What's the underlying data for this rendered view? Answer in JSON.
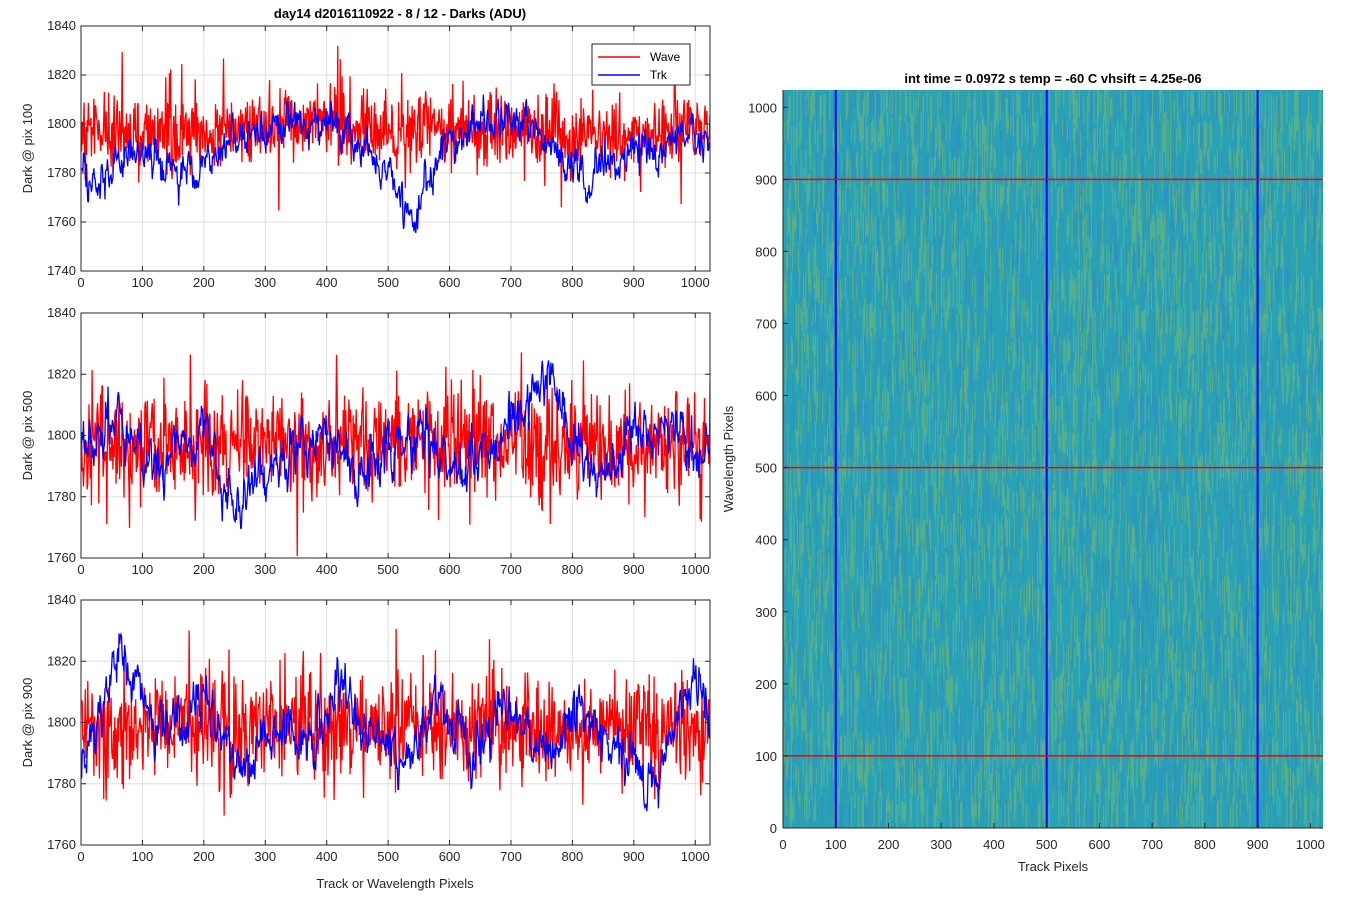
{
  "figure_title": "day14 d2016110922 - 8 / 12 - Darks (ADU)",
  "xlabel_bottom": "Track or Wavelength Pixels",
  "chart_data": [
    {
      "type": "line",
      "ylabel": "Dark @ pix 100",
      "xlim": [
        0,
        1024
      ],
      "ylim": [
        1740,
        1840
      ],
      "xticks": [
        0,
        100,
        200,
        300,
        400,
        500,
        600,
        700,
        800,
        900,
        1000
      ],
      "yticks": [
        1740,
        1760,
        1780,
        1800,
        1820,
        1840
      ],
      "grid": true,
      "legend": "top-right",
      "series": [
        {
          "name": "Wave",
          "color": "#ff0000",
          "mean": 1797,
          "noise": 9,
          "x": [
            0,
            100,
            200,
            300,
            400,
            500,
            600,
            700,
            800,
            900,
            1024
          ],
          "y": [
            1796,
            1797,
            1797,
            1798,
            1802,
            1798,
            1799,
            1797,
            1796,
            1796,
            1797
          ]
        },
        {
          "name": "Trk",
          "color": "#0000ff",
          "noise": 4,
          "x": [
            0,
            30,
            60,
            100,
            150,
            200,
            260,
            330,
            380,
            430,
            470,
            500,
            530,
            545,
            560,
            600,
            650,
            700,
            740,
            780,
            820,
            850,
            900,
            940,
            980,
            1024
          ],
          "y": [
            1778,
            1777,
            1784,
            1790,
            1780,
            1786,
            1794,
            1798,
            1800,
            1799,
            1788,
            1783,
            1768,
            1760,
            1776,
            1796,
            1800,
            1802,
            1801,
            1786,
            1776,
            1784,
            1790,
            1790,
            1797,
            1788
          ]
        }
      ]
    },
    {
      "type": "line",
      "ylabel": "Dark @ pix 500",
      "xlim": [
        0,
        1024
      ],
      "ylim": [
        1760,
        1840
      ],
      "xticks": [
        0,
        100,
        200,
        300,
        400,
        500,
        600,
        700,
        800,
        900,
        1000
      ],
      "yticks": [
        1760,
        1780,
        1800,
        1820,
        1840
      ],
      "grid": true,
      "series": [
        {
          "name": "Wave",
          "color": "#ff0000",
          "mean": 1797,
          "noise": 10,
          "x": [
            0,
            200,
            400,
            600,
            800,
            1024
          ],
          "y": [
            1796,
            1797,
            1798,
            1799,
            1796,
            1797
          ]
        },
        {
          "name": "Trk",
          "color": "#0000ff",
          "noise": 4,
          "x": [
            0,
            60,
            120,
            200,
            240,
            300,
            350,
            400,
            450,
            500,
            560,
            620,
            700,
            740,
            760,
            800,
            840,
            900,
            940,
            1024
          ],
          "y": [
            1796,
            1806,
            1790,
            1804,
            1778,
            1786,
            1795,
            1804,
            1785,
            1795,
            1800,
            1790,
            1803,
            1815,
            1822,
            1798,
            1786,
            1800,
            1804,
            1794
          ]
        }
      ]
    },
    {
      "type": "line",
      "ylabel": "Dark @ pix 900",
      "xlim": [
        0,
        1024
      ],
      "ylim": [
        1760,
        1840
      ],
      "xticks": [
        0,
        100,
        200,
        300,
        400,
        500,
        600,
        700,
        800,
        900,
        1000
      ],
      "yticks": [
        1760,
        1780,
        1800,
        1820,
        1840
      ],
      "grid": true,
      "series": [
        {
          "name": "Wave",
          "color": "#ff0000",
          "mean": 1798,
          "noise": 10,
          "x": [
            0,
            200,
            400,
            600,
            800,
            1024
          ],
          "y": [
            1797,
            1798,
            1798,
            1799,
            1798,
            1797
          ]
        },
        {
          "name": "Trk",
          "color": "#0000ff",
          "noise": 4,
          "x": [
            0,
            30,
            60,
            90,
            140,
            200,
            260,
            320,
            380,
            420,
            460,
            520,
            580,
            640,
            700,
            760,
            820,
            880,
            940,
            990,
            1024
          ],
          "y": [
            1786,
            1800,
            1824,
            1812,
            1798,
            1808,
            1786,
            1800,
            1790,
            1813,
            1800,
            1786,
            1806,
            1790,
            1806,
            1790,
            1802,
            1790,
            1778,
            1815,
            1805
          ]
        }
      ]
    },
    {
      "type": "heatmap",
      "title": "int time = 0.0972 s    temp = -60 C    vhsift = 4.25e-06",
      "xlabel": "Track Pixels",
      "ylabel": "Wavelength Pixels",
      "xlim": [
        0,
        1024
      ],
      "ylim": [
        0,
        1024
      ],
      "xticks": [
        0,
        100,
        200,
        300,
        400,
        500,
        600,
        700,
        800,
        900,
        1000
      ],
      "yticks": [
        0,
        100,
        200,
        300,
        400,
        500,
        600,
        700,
        800,
        900,
        1000
      ],
      "base_color": "#2aa2b5",
      "cool_color": "#2f86c8",
      "warm_color": "#8cbf5c",
      "markers": {
        "vertical_lines_x": [
          100,
          500,
          900
        ],
        "vertical_color": "#0000ff",
        "horizontal_lines_y": [
          100,
          500,
          900
        ],
        "horizontal_color": "#ff0000"
      }
    }
  ]
}
